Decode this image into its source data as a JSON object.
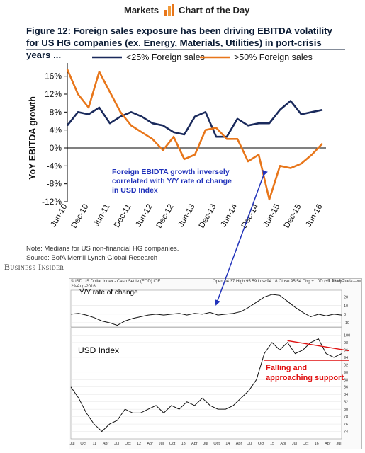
{
  "header": {
    "markets": "Markets",
    "chart_of_day": "Chart of the Day",
    "logo": "orange-bar-chart-icon"
  },
  "figure": {
    "title": "Figure 12: Foreign sales exposure has been driving EBITDA volatility for US HG companies (ex. Energy, Materials, Utilities) in port-crisis years ...",
    "note": "Note: Medians for US non-financial HG companies.",
    "source": "Source: BofA Merrill Lynch Global Research",
    "annotation": "Foreign EBIDTA growth inversely correlated with Y/Y rate of change in USD Index"
  },
  "branding": {
    "publisher": "Business Insider"
  },
  "colors": {
    "navy": "#1a2a5c",
    "orange": "#e8761a",
    "annotation_blue": "#2233bb",
    "red": "#e01010"
  },
  "chart_data": [
    {
      "type": "line",
      "title": "",
      "ylabel": "YoY EBITDA growth",
      "xlabel": "",
      "ylim": [
        -12,
        18
      ],
      "yticks": [
        "16%",
        "12%",
        "8%",
        "4%",
        "0%",
        "-4%",
        "-8%",
        "-12%"
      ],
      "ytick_values": [
        16,
        12,
        8,
        4,
        0,
        -4,
        -8,
        -12
      ],
      "xticks": [
        "Jun-10",
        "Dec-10",
        "Jun-11",
        "Dec-11",
        "Jun-12",
        "Dec-12",
        "Jun-13",
        "Dec-13",
        "Jun-14",
        "Dec-14",
        "Jun-15",
        "Dec-15",
        "Jun-16"
      ],
      "xtick_values": [
        0,
        2,
        4,
        6,
        8,
        10,
        12,
        14,
        16,
        18,
        20,
        22,
        24
      ],
      "legend": "top-right",
      "grid": false,
      "series": [
        {
          "name": "<25% Foreign sales",
          "color": "#1a2a5c",
          "x": [
            0,
            1,
            2,
            3,
            4,
            5,
            6,
            7,
            8,
            9,
            10,
            11,
            12,
            13,
            14,
            15,
            16,
            17,
            18,
            19,
            20,
            21,
            22,
            23,
            24
          ],
          "y": [
            5.0,
            8.0,
            7.5,
            9.0,
            5.5,
            7.0,
            8.0,
            7.0,
            5.5,
            5.0,
            3.5,
            3.0,
            7.0,
            8.0,
            2.5,
            2.5,
            6.5,
            5.0,
            5.5,
            5.5,
            8.5,
            10.5,
            7.5,
            8.0,
            8.5
          ]
        },
        {
          "name": ">50% Foreign sales",
          "color": "#e8761a",
          "x": [
            0,
            1,
            2,
            3,
            4,
            5,
            6,
            7,
            8,
            9,
            10,
            11,
            12,
            13,
            14,
            15,
            16,
            17,
            18,
            19,
            20,
            21,
            22,
            23,
            24
          ],
          "y": [
            17.5,
            12.0,
            9.0,
            17.0,
            12.5,
            8.0,
            5.0,
            3.5,
            2.0,
            -0.5,
            2.5,
            -2.5,
            -1.5,
            4.0,
            4.5,
            2.0,
            2.0,
            -3.0,
            -1.5,
            -11.5,
            -4.0,
            -4.5,
            -3.5,
            -1.5,
            1.0
          ]
        }
      ]
    },
    {
      "type": "line",
      "title": "$USD US Dollar Index - Cash Settle (EOD) ICE",
      "date": "29-Aug-2016",
      "readout": "Open 94.37  High 95.59  Low 94.18  Close 95.54  Chg +1.0D (+1.12%)",
      "site": "© StockCharts.com",
      "panels": [
        {
          "name": "Y/Y rate of change",
          "yticks": [
            "20",
            "10",
            "0",
            "-10"
          ],
          "ytick_values": [
            20,
            10,
            0,
            -10
          ],
          "ylim": [
            -15,
            28
          ],
          "values": [
            0,
            1,
            -1,
            -4,
            -8,
            -10,
            -13,
            -8,
            -5,
            -3,
            -1,
            0,
            -1,
            0,
            1,
            -1,
            1,
            0,
            2,
            -1,
            0,
            1,
            3,
            8,
            14,
            20,
            23,
            22,
            15,
            8,
            2,
            -3,
            0,
            -2,
            0,
            -1
          ]
        },
        {
          "name": "USD Index",
          "yticks": [
            "100",
            "98",
            "96",
            "94",
            "92",
            "90",
            "88",
            "86",
            "84",
            "82",
            "80",
            "78",
            "76",
            "74"
          ],
          "ytick_values": [
            100,
            98,
            96,
            94,
            92,
            90,
            88,
            86,
            84,
            82,
            80,
            78,
            76,
            74
          ],
          "ylim": [
            72,
            102
          ],
          "values": [
            86,
            83,
            79,
            76,
            74,
            76,
            77,
            80,
            79,
            79,
            80,
            81,
            79,
            81,
            80,
            82,
            81,
            83,
            81,
            80,
            80,
            81,
            83,
            85,
            88,
            95,
            98,
            96,
            98,
            95,
            96,
            98,
            99,
            95,
            94,
            95
          ],
          "annotation": "Falling and approaching support"
        }
      ],
      "xticks": [
        "Jul",
        "Oct",
        "11",
        "Apr",
        "Jul",
        "Oct",
        "12",
        "Apr",
        "Jul",
        "Oct",
        "13",
        "Apr",
        "Jul",
        "Oct",
        "14",
        "Apr",
        "Jul",
        "Oct",
        "15",
        "Apr",
        "Jul",
        "Oct",
        "16",
        "Apr",
        "Jul"
      ]
    }
  ]
}
